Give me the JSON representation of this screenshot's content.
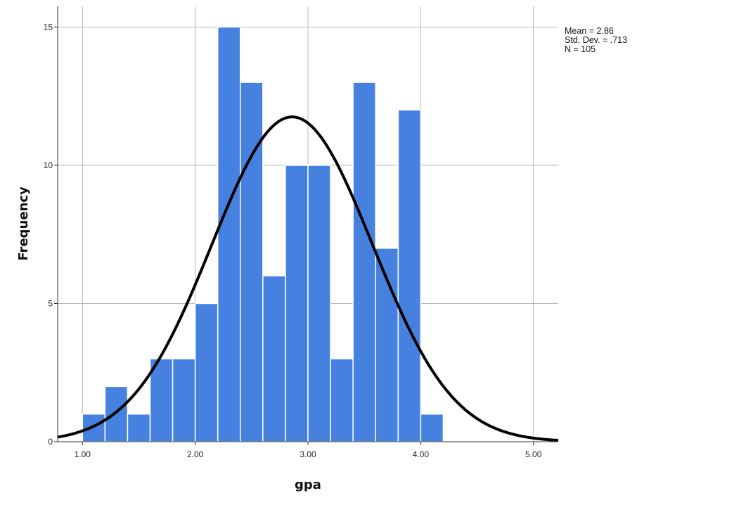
{
  "chart_data": {
    "type": "bar",
    "xlabel": "gpa",
    "ylabel": "Frequency",
    "xlim": [
      0.78,
      5.22
    ],
    "ylim": [
      0,
      15.75
    ],
    "x_ticks": [
      1.0,
      2.0,
      3.0,
      4.0,
      5.0
    ],
    "x_tick_labels": [
      "1.00",
      "2.00",
      "3.00",
      "4.00",
      "5.00"
    ],
    "y_ticks": [
      0,
      5,
      10,
      15
    ],
    "y_tick_labels": [
      "0",
      "5",
      "10",
      "15"
    ],
    "grid": true,
    "bin_width": 0.2,
    "bins": [
      {
        "start": 1.0,
        "end": 1.2,
        "count": 1
      },
      {
        "start": 1.2,
        "end": 1.4,
        "count": 2
      },
      {
        "start": 1.4,
        "end": 1.6,
        "count": 1
      },
      {
        "start": 1.6,
        "end": 1.8,
        "count": 3
      },
      {
        "start": 1.8,
        "end": 2.0,
        "count": 3
      },
      {
        "start": 2.0,
        "end": 2.2,
        "count": 5
      },
      {
        "start": 2.2,
        "end": 2.4,
        "count": 15
      },
      {
        "start": 2.4,
        "end": 2.6,
        "count": 13
      },
      {
        "start": 2.6,
        "end": 2.8,
        "count": 6
      },
      {
        "start": 2.8,
        "end": 3.0,
        "count": 10
      },
      {
        "start": 3.0,
        "end": 3.2,
        "count": 10
      },
      {
        "start": 3.2,
        "end": 3.4,
        "count": 3
      },
      {
        "start": 3.4,
        "end": 3.6,
        "count": 13
      },
      {
        "start": 3.6,
        "end": 3.8,
        "count": 7
      },
      {
        "start": 3.8,
        "end": 4.0,
        "count": 12
      },
      {
        "start": 4.0,
        "end": 4.2,
        "count": 1
      }
    ],
    "normal_curve": {
      "mean": 2.86,
      "sd": 0.713,
      "n": 105
    },
    "stats_lines": [
      "Mean = 2.86",
      "Std. Dev. = .713",
      "N = 105"
    ],
    "legend_position": "top-right",
    "colors": {
      "bar": "#4681e0",
      "bar_edge": "#ffffff",
      "curve": "#000000",
      "grid": "#b8b8b8"
    }
  }
}
